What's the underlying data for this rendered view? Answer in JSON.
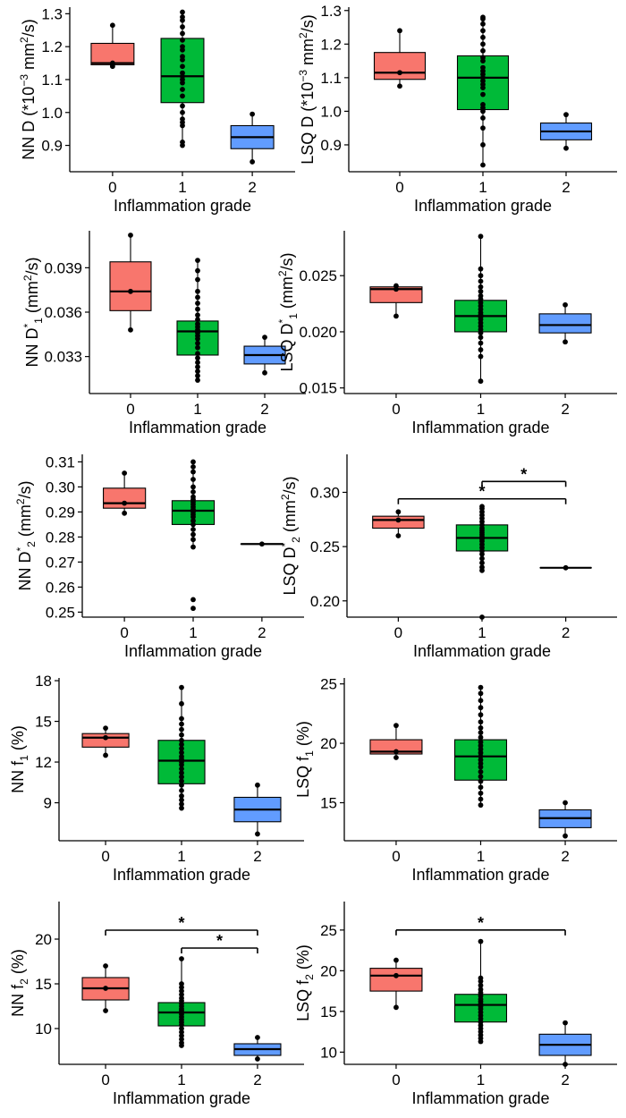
{
  "chart_data": [
    {
      "type": "box",
      "id": "nn-d",
      "ylabel": [
        "NN D  (*10",
        "−3",
        " mm",
        "2",
        "/s)"
      ],
      "xlabel": "Inflammation grade",
      "categories": [
        "0",
        "1",
        "2"
      ],
      "ylim": [
        0.82,
        1.32
      ],
      "yticks": [
        "0.9",
        "1.0",
        "1.1",
        "1.2",
        "1.3"
      ],
      "boxes": [
        {
          "q1": 1.145,
          "median": 1.15,
          "q3": 1.21,
          "wlo": 1.14,
          "whi": 1.265
        },
        {
          "q1": 1.03,
          "median": 1.11,
          "q3": 1.225,
          "wlo": 0.9,
          "whi": 1.305
        },
        {
          "q1": 0.89,
          "median": 0.925,
          "q3": 0.96,
          "wlo": 0.85,
          "whi": 0.995
        }
      ],
      "points": [
        [
          1.14,
          1.145,
          1.15,
          1.265
        ],
        [
          0.9,
          0.91,
          0.96,
          0.97,
          0.98,
          1.0,
          1.02,
          1.05,
          1.07,
          1.09,
          1.1,
          1.11,
          1.12,
          1.14,
          1.16,
          1.17,
          1.19,
          1.2,
          1.22,
          1.24,
          1.26,
          1.28,
          1.29,
          1.305
        ],
        [
          0.85,
          0.995
        ]
      ],
      "significance": []
    },
    {
      "type": "box",
      "id": "lsq-d",
      "ylabel": [
        "LSQ D  (*10",
        "−3",
        " mm",
        "2",
        "/s)"
      ],
      "xlabel": "Inflammation grade",
      "categories": [
        "0",
        "1",
        "2"
      ],
      "ylim": [
        0.82,
        1.31
      ],
      "yticks": [
        "0.9",
        "1.0",
        "1.1",
        "1.2",
        "1.3"
      ],
      "boxes": [
        {
          "q1": 1.095,
          "median": 1.115,
          "q3": 1.175,
          "wlo": 1.075,
          "whi": 1.24
        },
        {
          "q1": 1.005,
          "median": 1.1,
          "q3": 1.165,
          "wlo": 0.84,
          "whi": 1.28
        },
        {
          "q1": 0.915,
          "median": 0.94,
          "q3": 0.965,
          "wlo": 0.89,
          "whi": 0.99
        }
      ],
      "points": [
        [
          1.075,
          1.115,
          1.24
        ],
        [
          0.84,
          0.9,
          0.95,
          0.98,
          1.0,
          1.01,
          1.02,
          1.05,
          1.07,
          1.08,
          1.09,
          1.1,
          1.11,
          1.12,
          1.13,
          1.15,
          1.16,
          1.18,
          1.2,
          1.22,
          1.24,
          1.26,
          1.275,
          1.28
        ],
        [
          0.89,
          0.99
        ]
      ],
      "significance": []
    },
    {
      "type": "box",
      "id": "nn-d1",
      "ylabel": [
        "NN D",
        "*",
        "1",
        " (mm",
        "2",
        "/s)"
      ],
      "xlabel": "Inflammation grade",
      "categories": [
        "0",
        "1",
        "2"
      ],
      "ylim": [
        0.0305,
        0.0415
      ],
      "yticks": [
        "0.033",
        "0.036",
        "0.039"
      ],
      "tickvals": [
        0.033,
        0.036,
        0.039
      ],
      "boxes": [
        {
          "q1": 0.0361,
          "median": 0.0374,
          "q3": 0.0394,
          "wlo": 0.0348,
          "whi": 0.0412
        },
        {
          "q1": 0.0331,
          "median": 0.0347,
          "q3": 0.0354,
          "wlo": 0.0314,
          "whi": 0.0395
        },
        {
          "q1": 0.0325,
          "median": 0.0331,
          "q3": 0.0337,
          "wlo": 0.0319,
          "whi": 0.0343
        }
      ],
      "points": [
        [
          0.0348,
          0.0374,
          0.0412
        ],
        [
          0.0314,
          0.0317,
          0.032,
          0.0323,
          0.0326,
          0.0329,
          0.0332,
          0.0336,
          0.0339,
          0.0342,
          0.0344,
          0.0346,
          0.0348,
          0.035,
          0.0352,
          0.0355,
          0.0358,
          0.0362,
          0.0366,
          0.037,
          0.0374,
          0.0382,
          0.0388,
          0.0395
        ],
        [
          0.0319,
          0.0343
        ]
      ],
      "significance": []
    },
    {
      "type": "box",
      "id": "lsq-d1",
      "ylabel": [
        "LSQ D",
        "*",
        "1",
        " (mm",
        "2",
        "/s)"
      ],
      "xlabel": "Inflammation grade",
      "categories": [
        "0",
        "1",
        "2"
      ],
      "ylim": [
        0.0145,
        0.029
      ],
      "yticks": [
        "0.015",
        "0.020",
        "0.025"
      ],
      "tickvals": [
        0.015,
        0.02,
        0.025
      ],
      "boxes": [
        {
          "q1": 0.0226,
          "median": 0.0238,
          "q3": 0.024,
          "wlo": 0.0214,
          "whi": 0.0241
        },
        {
          "q1": 0.02,
          "median": 0.0214,
          "q3": 0.0228,
          "wlo": 0.0156,
          "whi": 0.0285
        },
        {
          "q1": 0.0199,
          "median": 0.0206,
          "q3": 0.0216,
          "wlo": 0.0191,
          "whi": 0.0224
        }
      ],
      "points": [
        [
          0.0214,
          0.0238,
          0.0241
        ],
        [
          0.0156,
          0.0178,
          0.0184,
          0.019,
          0.0195,
          0.0199,
          0.0202,
          0.0205,
          0.0208,
          0.0211,
          0.0213,
          0.0215,
          0.0217,
          0.022,
          0.0223,
          0.0226,
          0.0229,
          0.0232,
          0.0236,
          0.024,
          0.0245,
          0.025,
          0.0256,
          0.0285
        ],
        [
          0.0191,
          0.0224
        ]
      ],
      "significance": []
    },
    {
      "type": "box",
      "id": "nn-d2",
      "ylabel": [
        "NN D",
        "*",
        "2",
        " (mm",
        "2",
        "/s)"
      ],
      "xlabel": "Inflammation grade",
      "categories": [
        "0",
        "1",
        "2"
      ],
      "ylim": [
        0.248,
        0.313
      ],
      "yticks": [
        "0.25",
        "0.26",
        "0.27",
        "0.28",
        "0.29",
        "0.30",
        "0.31"
      ],
      "tickvals": [
        0.25,
        0.26,
        0.27,
        0.28,
        0.29,
        0.3,
        0.31
      ],
      "boxes": [
        {
          "q1": 0.2915,
          "median": 0.2935,
          "q3": 0.2995,
          "wlo": 0.2895,
          "whi": 0.3055
        },
        {
          "q1": 0.285,
          "median": 0.2905,
          "q3": 0.2945,
          "wlo": 0.276,
          "whi": 0.31
        },
        {
          "q1": 0.2772,
          "median": 0.2772,
          "q3": 0.2772,
          "wlo": 0.2772,
          "whi": 0.2772
        }
      ],
      "points": [
        [
          0.2895,
          0.2935,
          0.3055
        ],
        [
          0.2515,
          0.255,
          0.276,
          0.279,
          0.281,
          0.283,
          0.285,
          0.2865,
          0.288,
          0.289,
          0.29,
          0.2905,
          0.291,
          0.292,
          0.293,
          0.294,
          0.295,
          0.296,
          0.298,
          0.3,
          0.303,
          0.306,
          0.308,
          0.31
        ],
        [
          0.2772
        ]
      ],
      "significance": []
    },
    {
      "type": "box",
      "id": "lsq-d2",
      "ylabel": [
        "LSQ D",
        "*",
        "2",
        " (mm",
        "2",
        "/s)"
      ],
      "xlabel": "Inflammation grade",
      "categories": [
        "0",
        "1",
        "2"
      ],
      "ylim": [
        0.185,
        0.335
      ],
      "yticks": [
        "0.20",
        "0.25",
        "0.30"
      ],
      "tickvals": [
        0.2,
        0.25,
        0.3
      ],
      "boxes": [
        {
          "q1": 0.267,
          "median": 0.2745,
          "q3": 0.278,
          "wlo": 0.26,
          "whi": 0.282
        },
        {
          "q1": 0.246,
          "median": 0.258,
          "q3": 0.27,
          "wlo": 0.228,
          "whi": 0.287
        },
        {
          "q1": 0.2305,
          "median": 0.2305,
          "q3": 0.2305,
          "wlo": 0.2305,
          "whi": 0.2305
        }
      ],
      "points": [
        [
          0.26,
          0.2745,
          0.282
        ],
        [
          0.185,
          0.228,
          0.231,
          0.235,
          0.239,
          0.243,
          0.246,
          0.249,
          0.252,
          0.255,
          0.257,
          0.259,
          0.261,
          0.263,
          0.265,
          0.267,
          0.27,
          0.273,
          0.276,
          0.279,
          0.282,
          0.285,
          0.287
        ],
        [
          0.2305
        ]
      ],
      "significance": [
        {
          "from": 1,
          "to": 2,
          "y": 0.31,
          "label": "*"
        },
        {
          "from": 0,
          "to": 2,
          "y": 0.294,
          "label": "*"
        }
      ]
    },
    {
      "type": "box",
      "id": "nn-f1",
      "ylabel": [
        "NN f",
        "1",
        " (%)"
      ],
      "xlabel": "Inflammation grade",
      "categories": [
        "0",
        "1",
        "2"
      ],
      "ylim": [
        6.2,
        18.2
      ],
      "yticks": [
        "9",
        "12",
        "15",
        "18"
      ],
      "tickvals": [
        9,
        12,
        15,
        18
      ],
      "boxes": [
        {
          "q1": 13.1,
          "median": 13.8,
          "q3": 14.1,
          "wlo": 12.5,
          "whi": 14.5
        },
        {
          "q1": 10.4,
          "median": 12.1,
          "q3": 13.6,
          "wlo": 8.6,
          "whi": 17.5
        },
        {
          "q1": 7.6,
          "median": 8.5,
          "q3": 9.4,
          "wlo": 6.7,
          "whi": 10.3
        }
      ],
      "points": [
        [
          12.5,
          13.8,
          14.5
        ],
        [
          8.6,
          8.9,
          9.2,
          9.5,
          9.9,
          10.3,
          10.6,
          10.9,
          11.2,
          11.5,
          11.8,
          12.0,
          12.2,
          12.4,
          12.7,
          13.0,
          13.3,
          13.6,
          14.0,
          14.4,
          14.8,
          15.2,
          16.3,
          17.5
        ],
        [
          6.7,
          10.3
        ]
      ],
      "significance": []
    },
    {
      "type": "box",
      "id": "lsq-f1",
      "ylabel": [
        "LSQ f",
        "1",
        " (%)"
      ],
      "xlabel": "Inflammation grade",
      "categories": [
        "0",
        "1",
        "2"
      ],
      "ylim": [
        11.8,
        25.5
      ],
      "yticks": [
        "15",
        "20",
        "25"
      ],
      "tickvals": [
        15,
        20,
        25
      ],
      "boxes": [
        {
          "q1": 19.1,
          "median": 19.3,
          "q3": 20.3,
          "wlo": 18.8,
          "whi": 21.5
        },
        {
          "q1": 16.9,
          "median": 18.9,
          "q3": 20.3,
          "wlo": 14.8,
          "whi": 24.7
        },
        {
          "q1": 12.9,
          "median": 13.7,
          "q3": 14.4,
          "wlo": 12.2,
          "whi": 15.0
        }
      ],
      "points": [
        [
          18.8,
          19.3,
          21.5
        ],
        [
          14.8,
          15.3,
          15.8,
          16.3,
          16.8,
          17.2,
          17.6,
          18.0,
          18.3,
          18.6,
          18.9,
          19.2,
          19.5,
          19.8,
          20.1,
          20.5,
          20.9,
          21.3,
          21.8,
          22.4,
          23.0,
          23.6,
          24.2,
          24.7
        ],
        [
          12.2,
          15.0
        ]
      ],
      "significance": []
    },
    {
      "type": "box",
      "id": "nn-f2",
      "ylabel": [
        "NN f",
        "2",
        " (%)"
      ],
      "xlabel": "Inflammation grade",
      "categories": [
        "0",
        "1",
        "2"
      ],
      "ylim": [
        6.0,
        24.2
      ],
      "yticks": [
        "10",
        "15",
        "20"
      ],
      "tickvals": [
        10,
        15,
        20
      ],
      "boxes": [
        {
          "q1": 13.2,
          "median": 14.5,
          "q3": 15.7,
          "wlo": 12.0,
          "whi": 17.0
        },
        {
          "q1": 10.3,
          "median": 11.8,
          "q3": 12.9,
          "wlo": 8.1,
          "whi": 17.8
        },
        {
          "q1": 7.0,
          "median": 7.7,
          "q3": 8.3,
          "wlo": 6.6,
          "whi": 9.0
        }
      ],
      "points": [
        [
          12.0,
          14.5,
          17.0
        ],
        [
          8.1,
          8.4,
          8.8,
          9.2,
          9.6,
          10.0,
          10.4,
          10.7,
          11.0,
          11.3,
          11.6,
          11.8,
          12.0,
          12.2,
          12.5,
          12.8,
          13.1,
          13.4,
          13.8,
          14.2,
          14.6,
          15.0,
          17.8
        ],
        [
          6.6,
          9.0
        ]
      ],
      "significance": [
        {
          "from": 0,
          "to": 2,
          "y": 21.0,
          "label": "*"
        },
        {
          "from": 1,
          "to": 2,
          "y": 19.0,
          "label": "*"
        }
      ]
    },
    {
      "type": "box",
      "id": "lsq-f2",
      "ylabel": [
        "LSQ f",
        "2",
        " (%)"
      ],
      "xlabel": "Inflammation grade",
      "categories": [
        "0",
        "1",
        "2"
      ],
      "ylim": [
        8.5,
        28.5
      ],
      "yticks": [
        "10",
        "15",
        "20",
        "25"
      ],
      "tickvals": [
        10,
        15,
        20,
        25
      ],
      "boxes": [
        {
          "q1": 17.5,
          "median": 19.4,
          "q3": 20.3,
          "wlo": 15.5,
          "whi": 21.3
        },
        {
          "q1": 13.7,
          "median": 15.8,
          "q3": 17.1,
          "wlo": 11.3,
          "whi": 23.6
        },
        {
          "q1": 9.6,
          "median": 10.9,
          "q3": 12.2,
          "wlo": 8.5,
          "whi": 13.6
        }
      ],
      "points": [
        [
          15.5,
          19.4,
          21.3
        ],
        [
          11.3,
          11.7,
          12.1,
          12.5,
          12.9,
          13.3,
          13.7,
          14.1,
          14.5,
          14.9,
          15.3,
          15.6,
          15.9,
          16.2,
          16.5,
          16.9,
          17.3,
          17.7,
          18.2,
          18.7,
          19.1,
          23.6
        ],
        [
          8.5,
          13.6
        ]
      ],
      "significance": [
        {
          "from": 0,
          "to": 2,
          "y": 25.0,
          "label": "*"
        }
      ]
    }
  ],
  "colors": {
    "group0": "#F8766D",
    "group1": "#00BA38",
    "group2": "#619CFF",
    "ink": "#000000"
  }
}
